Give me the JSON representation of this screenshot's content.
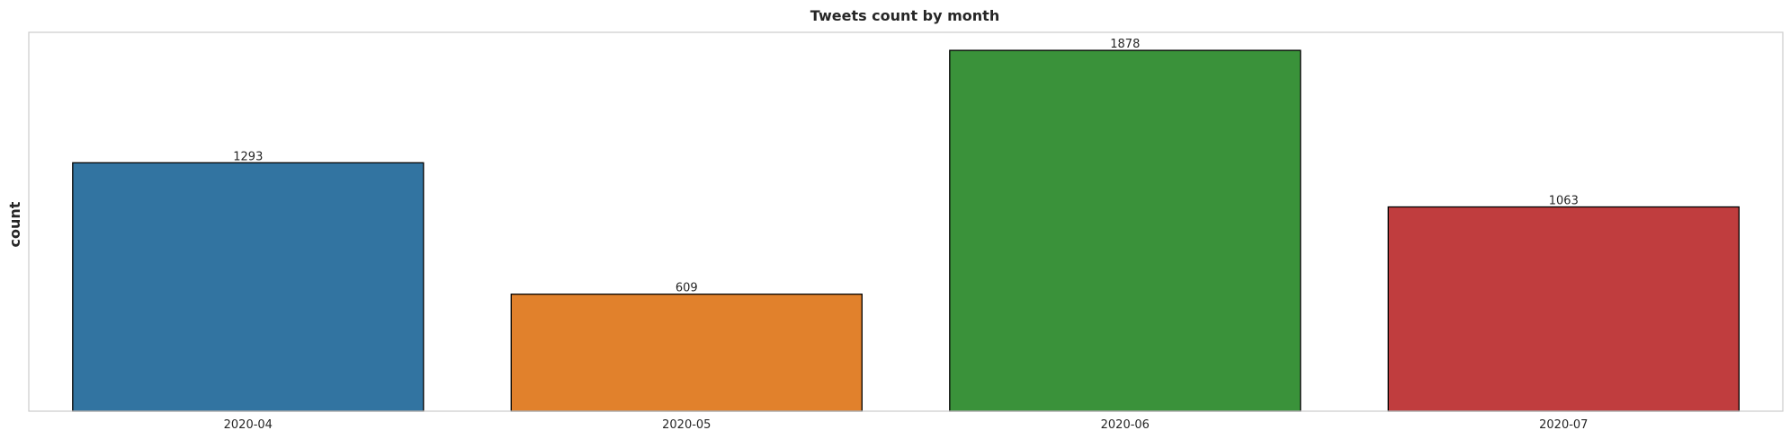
{
  "chart_data": {
    "type": "bar",
    "title": "Tweets count by month",
    "xlabel": "",
    "ylabel": "count",
    "categories": [
      "2020-04",
      "2020-05",
      "2020-06",
      "2020-07"
    ],
    "values": [
      1293,
      609,
      1878,
      1063
    ],
    "value_labels": [
      "1293",
      "609",
      "1878",
      "1063"
    ],
    "colors": [
      "#3274a1",
      "#e1812c",
      "#3a923a",
      "#c03d3e"
    ],
    "edge_color": "#000000",
    "frame_color": "#cccccc",
    "ylim": [
      0,
      1972
    ],
    "grid": false,
    "legend": false
  }
}
